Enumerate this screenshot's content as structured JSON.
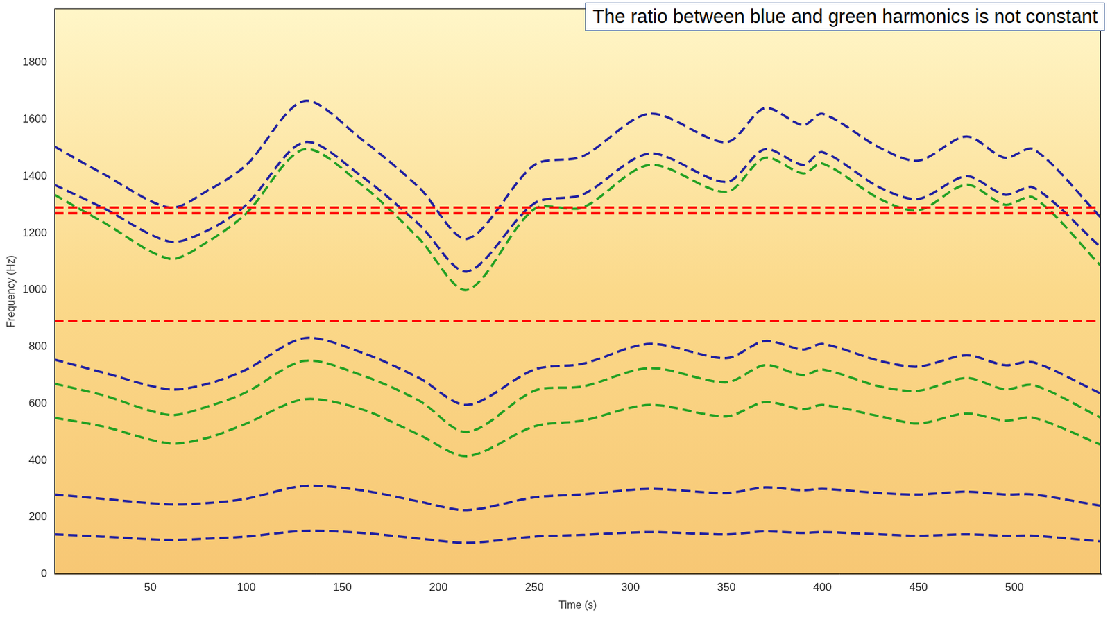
{
  "chart_data": {
    "type": "line",
    "annotations": [
      "The ratio between blue and green harmonics is not constant"
    ],
    "x_label": "Time (s)",
    "y_label": "Frequency (Hz)",
    "xlim": [
      0,
      545
    ],
    "ylim": [
      0,
      1990
    ],
    "xticks": [
      50,
      100,
      150,
      200,
      250,
      300,
      350,
      400,
      450,
      500
    ],
    "yticks": [
      0,
      200,
      400,
      600,
      800,
      1000,
      1200,
      1400,
      1600,
      1800
    ],
    "grid": false,
    "series": [
      {
        "color": "#ff0000",
        "line_style": "dashed",
        "x": [
          0,
          545
        ],
        "values": [
          1290,
          1290
        ]
      },
      {
        "color": "#ff0000",
        "line_style": "dashed",
        "x": [
          0,
          545
        ],
        "values": [
          1270,
          1270
        ]
      },
      {
        "color": "#ff0000",
        "line_style": "dashed",
        "x": [
          0,
          545
        ],
        "values": [
          890,
          890
        ]
      },
      {
        "color": "#1f1fa0",
        "line_style": "dashed",
        "x": [
          0,
          25,
          60,
          80,
          100,
          130,
          160,
          190,
          215,
          250,
          275,
          310,
          350,
          370,
          390,
          400,
          430,
          450,
          475,
          495,
          510,
          545
        ],
        "values": [
          1505,
          1410,
          1290,
          1350,
          1440,
          1665,
          1530,
          1360,
          1180,
          1440,
          1470,
          1620,
          1520,
          1640,
          1580,
          1620,
          1500,
          1455,
          1540,
          1465,
          1495,
          1255
        ]
      },
      {
        "color": "#1f1fa0",
        "line_style": "dashed",
        "x": [
          0,
          25,
          60,
          80,
          100,
          130,
          160,
          190,
          215,
          250,
          275,
          310,
          350,
          370,
          390,
          400,
          430,
          450,
          475,
          495,
          510,
          545
        ],
        "values": [
          1370,
          1290,
          1170,
          1210,
          1300,
          1520,
          1400,
          1230,
          1065,
          1305,
          1335,
          1480,
          1380,
          1495,
          1440,
          1485,
          1360,
          1320,
          1400,
          1335,
          1360,
          1150
        ]
      },
      {
        "color": "#22a022",
        "line_style": "dashed",
        "x": [
          0,
          25,
          60,
          80,
          100,
          130,
          160,
          190,
          215,
          250,
          275,
          310,
          350,
          370,
          390,
          400,
          430,
          450,
          475,
          495,
          510,
          545
        ],
        "values": [
          1335,
          1240,
          1110,
          1170,
          1270,
          1495,
          1370,
          1180,
          1000,
          1285,
          1290,
          1440,
          1345,
          1465,
          1410,
          1445,
          1320,
          1280,
          1370,
          1300,
          1325,
          1085
        ]
      },
      {
        "color": "#1f1fa0",
        "line_style": "dashed",
        "x": [
          0,
          25,
          60,
          80,
          100,
          130,
          160,
          190,
          215,
          250,
          275,
          310,
          350,
          370,
          390,
          400,
          430,
          450,
          475,
          495,
          510,
          545
        ],
        "values": [
          755,
          710,
          650,
          670,
          720,
          830,
          780,
          690,
          595,
          720,
          740,
          810,
          760,
          820,
          790,
          810,
          750,
          730,
          770,
          735,
          745,
          635
        ]
      },
      {
        "color": "#22a022",
        "line_style": "dashed",
        "x": [
          0,
          25,
          60,
          80,
          100,
          130,
          160,
          190,
          215,
          250,
          275,
          310,
          350,
          370,
          390,
          400,
          430,
          450,
          475,
          495,
          510,
          545
        ],
        "values": [
          670,
          630,
          560,
          590,
          640,
          750,
          700,
          610,
          500,
          645,
          660,
          725,
          675,
          735,
          700,
          720,
          660,
          645,
          690,
          650,
          665,
          550
        ]
      },
      {
        "color": "#22a022",
        "line_style": "dashed",
        "x": [
          0,
          25,
          60,
          80,
          100,
          130,
          160,
          190,
          215,
          250,
          275,
          310,
          350,
          370,
          390,
          400,
          430,
          450,
          475,
          495,
          510,
          545
        ],
        "values": [
          550,
          520,
          460,
          480,
          530,
          615,
          580,
          490,
          415,
          520,
          540,
          595,
          555,
          605,
          580,
          595,
          555,
          530,
          565,
          540,
          550,
          455
        ]
      },
      {
        "color": "#1f1fa0",
        "line_style": "dashed",
        "x": [
          0,
          25,
          60,
          80,
          100,
          130,
          160,
          190,
          215,
          250,
          275,
          310,
          350,
          370,
          390,
          400,
          430,
          450,
          475,
          495,
          510,
          545
        ],
        "values": [
          280,
          265,
          245,
          250,
          265,
          310,
          295,
          255,
          225,
          270,
          280,
          300,
          285,
          305,
          295,
          300,
          285,
          280,
          290,
          280,
          280,
          240
        ]
      },
      {
        "color": "#1f1fa0",
        "line_style": "dashed",
        "x": [
          0,
          25,
          60,
          80,
          100,
          130,
          160,
          190,
          215,
          250,
          275,
          310,
          350,
          370,
          390,
          400,
          430,
          450,
          475,
          495,
          510,
          545
        ],
        "values": [
          140,
          132,
          120,
          125,
          132,
          152,
          145,
          125,
          110,
          132,
          138,
          148,
          140,
          150,
          145,
          148,
          140,
          135,
          140,
          135,
          135,
          115
        ]
      }
    ]
  }
}
